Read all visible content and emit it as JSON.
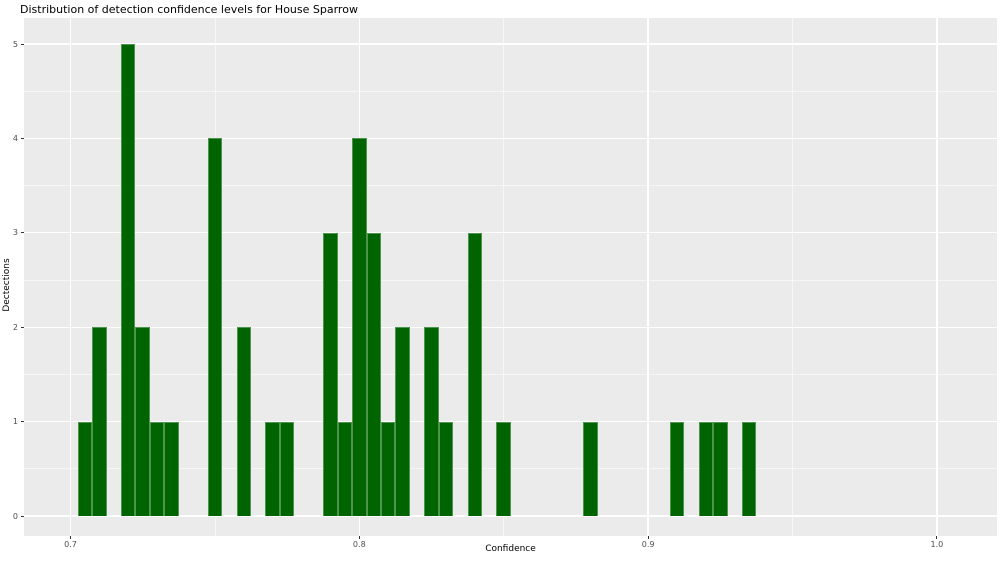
{
  "chart_data": {
    "type": "bar",
    "subtype": "histogram",
    "title": "Distribution of detection confidence levels for House Sparrow",
    "xlabel": "Confidence",
    "ylabel": "Dectections",
    "legend": "none",
    "grid": true,
    "xlim": [
      0.684,
      1.021
    ],
    "ylim": [
      -0.25,
      5.25
    ],
    "bin_width": 0.005,
    "x_ticks": [
      {
        "value": 0.7,
        "label": "0.7"
      },
      {
        "value": 0.8,
        "label": "0.8"
      },
      {
        "value": 0.9,
        "label": "0.9"
      },
      {
        "value": 1.0,
        "label": "1.0"
      }
    ],
    "y_ticks": [
      {
        "value": 0,
        "label": "0"
      },
      {
        "value": 1,
        "label": "1"
      },
      {
        "value": 2,
        "label": "2"
      },
      {
        "value": 3,
        "label": "3"
      },
      {
        "value": 4,
        "label": "4"
      },
      {
        "value": 5,
        "label": "5"
      }
    ],
    "bins": [
      {
        "x": 0.705,
        "count": 1
      },
      {
        "x": 0.71,
        "count": 2
      },
      {
        "x": 0.72,
        "count": 5
      },
      {
        "x": 0.725,
        "count": 2
      },
      {
        "x": 0.73,
        "count": 1
      },
      {
        "x": 0.735,
        "count": 1
      },
      {
        "x": 0.75,
        "count": 4
      },
      {
        "x": 0.76,
        "count": 2
      },
      {
        "x": 0.77,
        "count": 1
      },
      {
        "x": 0.775,
        "count": 1
      },
      {
        "x": 0.79,
        "count": 3
      },
      {
        "x": 0.795,
        "count": 1
      },
      {
        "x": 0.8,
        "count": 4
      },
      {
        "x": 0.805,
        "count": 3
      },
      {
        "x": 0.81,
        "count": 1
      },
      {
        "x": 0.815,
        "count": 2
      },
      {
        "x": 0.825,
        "count": 2
      },
      {
        "x": 0.83,
        "count": 1
      },
      {
        "x": 0.84,
        "count": 3
      },
      {
        "x": 0.85,
        "count": 1
      },
      {
        "x": 0.88,
        "count": 1
      },
      {
        "x": 0.91,
        "count": 1
      },
      {
        "x": 0.92,
        "count": 1
      },
      {
        "x": 0.925,
        "count": 1
      },
      {
        "x": 0.935,
        "count": 1
      }
    ],
    "colors": {
      "bar_fill": "#006400",
      "bar_edge": "#4e944e",
      "panel_background": "#ebebeb",
      "grid_major": "#ffffff",
      "grid_minor": "#f5f5f5",
      "tick_mark": "#333333",
      "tick_label": "#4d4d4d",
      "text": "#000000"
    }
  }
}
